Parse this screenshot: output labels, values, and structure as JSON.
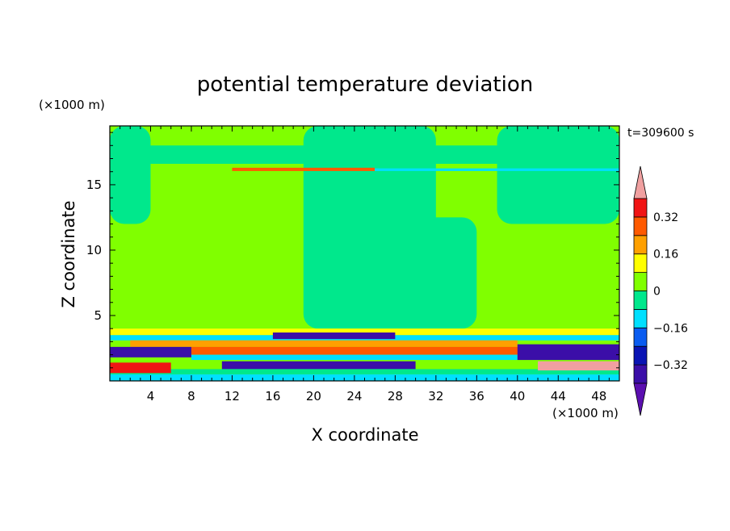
{
  "chart_data": {
    "type": "heatmap",
    "title": "potential temperature deviation",
    "xlabel": "X coordinate",
    "ylabel": "Z coordinate",
    "x_unit": "(×1000 m)",
    "y_unit": "(×1000 m)",
    "time_label": "t=309600 s",
    "xlim": [
      0,
      50
    ],
    "ylim": [
      0,
      19.5
    ],
    "x_ticks": [
      4,
      8,
      12,
      16,
      20,
      24,
      28,
      32,
      36,
      40,
      44,
      48
    ],
    "y_ticks": [
      5,
      10,
      15
    ],
    "colorbar": {
      "levels": [
        -0.4,
        -0.32,
        -0.24,
        -0.16,
        -0.08,
        0,
        0.08,
        0.16,
        0.24,
        0.32,
        0.4
      ],
      "labels": [
        "0.32",
        "0.16",
        "0",
        "−0.16",
        "−0.32"
      ],
      "label_values": [
        0.32,
        0.16,
        0,
        -0.16,
        -0.32
      ],
      "colors": [
        "#5b0fb0",
        "#3b0ea8",
        "#0a14b4",
        "#0a5cf0",
        "#00e0ff",
        "#00e88c",
        "#80ff00",
        "#ffff00",
        "#ffa000",
        "#ff5a00",
        "#f01414",
        "#f0a0a0"
      ],
      "extend": "both"
    },
    "background_value": 0.02,
    "regions": [
      {
        "kind": "rect",
        "x": [
          19,
          32
        ],
        "z": [
          4,
          19.5
        ],
        "value": -0.02
      },
      {
        "kind": "rect",
        "x": [
          27,
          36
        ],
        "z": [
          4,
          12.5
        ],
        "value": -0.02
      },
      {
        "kind": "rect",
        "x": [
          0,
          4
        ],
        "z": [
          12,
          19.5
        ],
        "value": -0.02
      },
      {
        "kind": "rect",
        "x": [
          38,
          50
        ],
        "z": [
          12,
          19.5
        ],
        "value": -0.02
      },
      {
        "kind": "rect",
        "x": [
          0,
          50
        ],
        "z": [
          16.6,
          18
        ],
        "value": -0.02
      },
      {
        "kind": "band",
        "x": [
          12,
          26
        ],
        "z": [
          16.05,
          16.3
        ],
        "value": 0.3
      },
      {
        "kind": "band",
        "x": [
          26,
          50
        ],
        "z": [
          16.05,
          16.25
        ],
        "value": -0.15
      },
      {
        "kind": "band",
        "x": [
          0,
          50
        ],
        "z": [
          3.5,
          4.0
        ],
        "value": 0.1
      },
      {
        "kind": "band",
        "x": [
          0,
          50
        ],
        "z": [
          3.1,
          3.5
        ],
        "value": -0.12
      },
      {
        "kind": "band",
        "x": [
          16,
          28
        ],
        "z": [
          3.2,
          3.7
        ],
        "value": -0.34
      },
      {
        "kind": "band",
        "x": [
          2,
          40
        ],
        "z": [
          2.6,
          3.1
        ],
        "value": 0.18
      },
      {
        "kind": "band",
        "x": [
          8,
          50
        ],
        "z": [
          2.0,
          2.6
        ],
        "value": 0.28
      },
      {
        "kind": "band",
        "x": [
          0,
          8
        ],
        "z": [
          1.8,
          2.6
        ],
        "value": -0.38
      },
      {
        "kind": "band",
        "x": [
          8,
          40
        ],
        "z": [
          1.6,
          2.0
        ],
        "value": -0.14
      },
      {
        "kind": "band",
        "x": [
          11,
          30
        ],
        "z": [
          0.9,
          1.5
        ],
        "value": -0.34
      },
      {
        "kind": "band",
        "x": [
          0,
          50
        ],
        "z": [
          0.5,
          0.9
        ],
        "value": -0.06
      },
      {
        "kind": "band",
        "x": [
          0,
          6
        ],
        "z": [
          0.6,
          1.4
        ],
        "value": 0.33
      },
      {
        "kind": "band",
        "x": [
          40,
          50
        ],
        "z": [
          1.6,
          2.8
        ],
        "value": -0.38
      },
      {
        "kind": "band",
        "x": [
          42,
          50
        ],
        "z": [
          0.8,
          1.5
        ],
        "value": 0.42
      },
      {
        "kind": "band",
        "x": [
          0,
          50
        ],
        "z": [
          0,
          0.5
        ],
        "value": -0.1
      }
    ]
  }
}
